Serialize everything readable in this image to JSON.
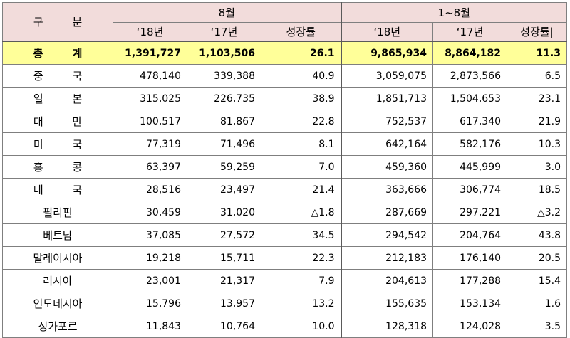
{
  "header": {
    "category": "구 분",
    "period_month": "8월",
    "period_cumulative": "1~8월",
    "col_2018": "‘18년",
    "col_2017": "‘17년",
    "col_growth": "성장률",
    "col_2018_b": "‘18년",
    "col_2017_b": "‘17년",
    "col_growth_b": "성장률|"
  },
  "total": {
    "name": "총 계",
    "m18": "1,391,727",
    "m17": "1,103,506",
    "mg": "26.1",
    "c18": "9,865,934",
    "c17": "8,864,182",
    "cg": "11.3"
  },
  "rows": [
    {
      "name": "중 국",
      "m18": "478,140",
      "m17": "339,388",
      "mg": "40.9",
      "c18": "3,059,075",
      "c17": "2,873,566",
      "cg": "6.5"
    },
    {
      "name": "일 본",
      "m18": "315,025",
      "m17": "226,735",
      "mg": "38.9",
      "c18": "1,851,713",
      "c17": "1,504,653",
      "cg": "23.1"
    },
    {
      "name": "대 만",
      "m18": "100,517",
      "m17": "81,867",
      "mg": "22.8",
      "c18": "752,537",
      "c17": "617,340",
      "cg": "21.9"
    },
    {
      "name": "미 국",
      "m18": "77,319",
      "m17": "71,496",
      "mg": "8.1",
      "c18": "642,164",
      "c17": "582,176",
      "cg": "10.3"
    },
    {
      "name": "홍 콩",
      "m18": "63,397",
      "m17": "59,259",
      "mg": "7.0",
      "c18": "459,360",
      "c17": "445,999",
      "cg": "3.0"
    },
    {
      "name": "태 국",
      "m18": "28,516",
      "m17": "23,497",
      "mg": "21.4",
      "c18": "363,666",
      "c17": "306,774",
      "cg": "18.5"
    },
    {
      "name": "필리핀",
      "m18": "30,459",
      "m17": "31,020",
      "mg": "△1.8",
      "c18": "287,669",
      "c17": "297,221",
      "cg": "△3.2"
    },
    {
      "name": "베트남",
      "m18": "37,085",
      "m17": "27,572",
      "mg": "34.5",
      "c18": "294,542",
      "c17": "204,764",
      "cg": "43.8"
    },
    {
      "name": "말레이시아",
      "m18": "19,218",
      "m17": "15,711",
      "mg": "22.3",
      "c18": "212,183",
      "c17": "176,140",
      "cg": "20.5"
    },
    {
      "name": "러시아",
      "m18": "23,001",
      "m17": "21,317",
      "mg": "7.9",
      "c18": "204,613",
      "c17": "177,288",
      "cg": "15.4"
    },
    {
      "name": "인도네시아",
      "m18": "15,796",
      "m17": "13,957",
      "mg": "13.2",
      "c18": "155,635",
      "c17": "153,134",
      "cg": "1.6"
    },
    {
      "name": "싱가포르",
      "m18": "11,843",
      "m17": "10,764",
      "mg": "10.0",
      "c18": "128,318",
      "c17": "124,028",
      "cg": "3.5"
    }
  ],
  "colors": {
    "header_bg": "#f2dcdb",
    "total_bg": "#ffff99",
    "border": "#7f7f7f"
  }
}
